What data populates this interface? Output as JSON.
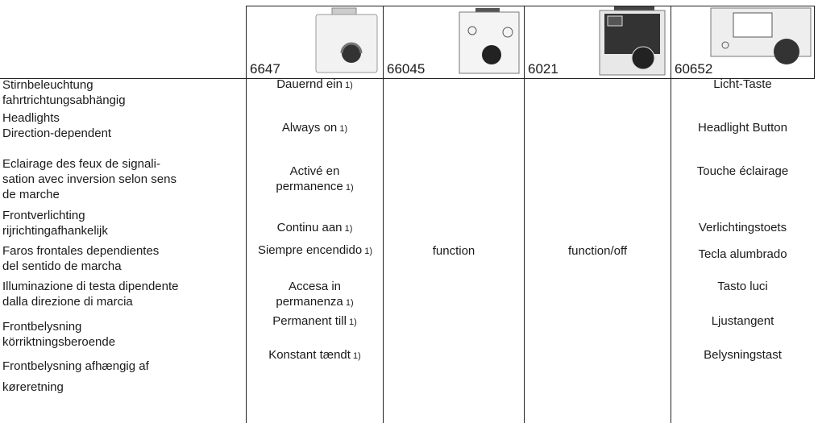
{
  "header": {
    "models": [
      "6647",
      "66045",
      "6021",
      "60652"
    ]
  },
  "table": {
    "rows": [
      {
        "label": "Stirnbeleuchtung\nfahrtrichtungsabhängig",
        "col1": {
          "text": "Dauernd ein",
          "note": "1)"
        },
        "col4": "Licht-Taste"
      },
      {
        "label": "Headlights\nDirection-dependent",
        "col1": {
          "text": "Always on",
          "note": "1)"
        },
        "col4": "Headlight Button"
      },
      {
        "label": "Eclairage des feux de signali-\nsation avec inversion selon sens\nde marche",
        "col1": {
          "text": "Activé en\npermanence",
          "note": "1)"
        },
        "col4": "Touche éclairage"
      },
      {
        "label": "Frontverlichting\nrijrichtingafhankelijk",
        "col1": {
          "text": "Continu aan",
          "note": "1)"
        },
        "col4": "Verlichtingstoets"
      },
      {
        "label": "Faros frontales dependientes\ndel sentido de marcha",
        "col1": {
          "text": "Siempre encendido",
          "note": "1)"
        },
        "col4": "Tecla alumbrado"
      },
      {
        "label": "Illuminazione di testa dipendente\ndalla direzione di marcia",
        "col1": {
          "text": "Accesa in\npermanenza",
          "note": "1)"
        },
        "col4": "Tasto luci"
      },
      {
        "label": "Frontbelysning\nkörriktningsberoende",
        "col1": {
          "text": "Permanent till",
          "note": "1)"
        },
        "col4": "Ljustangent"
      },
      {
        "label": "Frontbelysning afhængig af\nkøreretning",
        "col1": {
          "text": "Konstant tændt",
          "note": "1)"
        },
        "col4": "Belysningstast"
      }
    ],
    "col2": "function",
    "col3": "function/off"
  }
}
